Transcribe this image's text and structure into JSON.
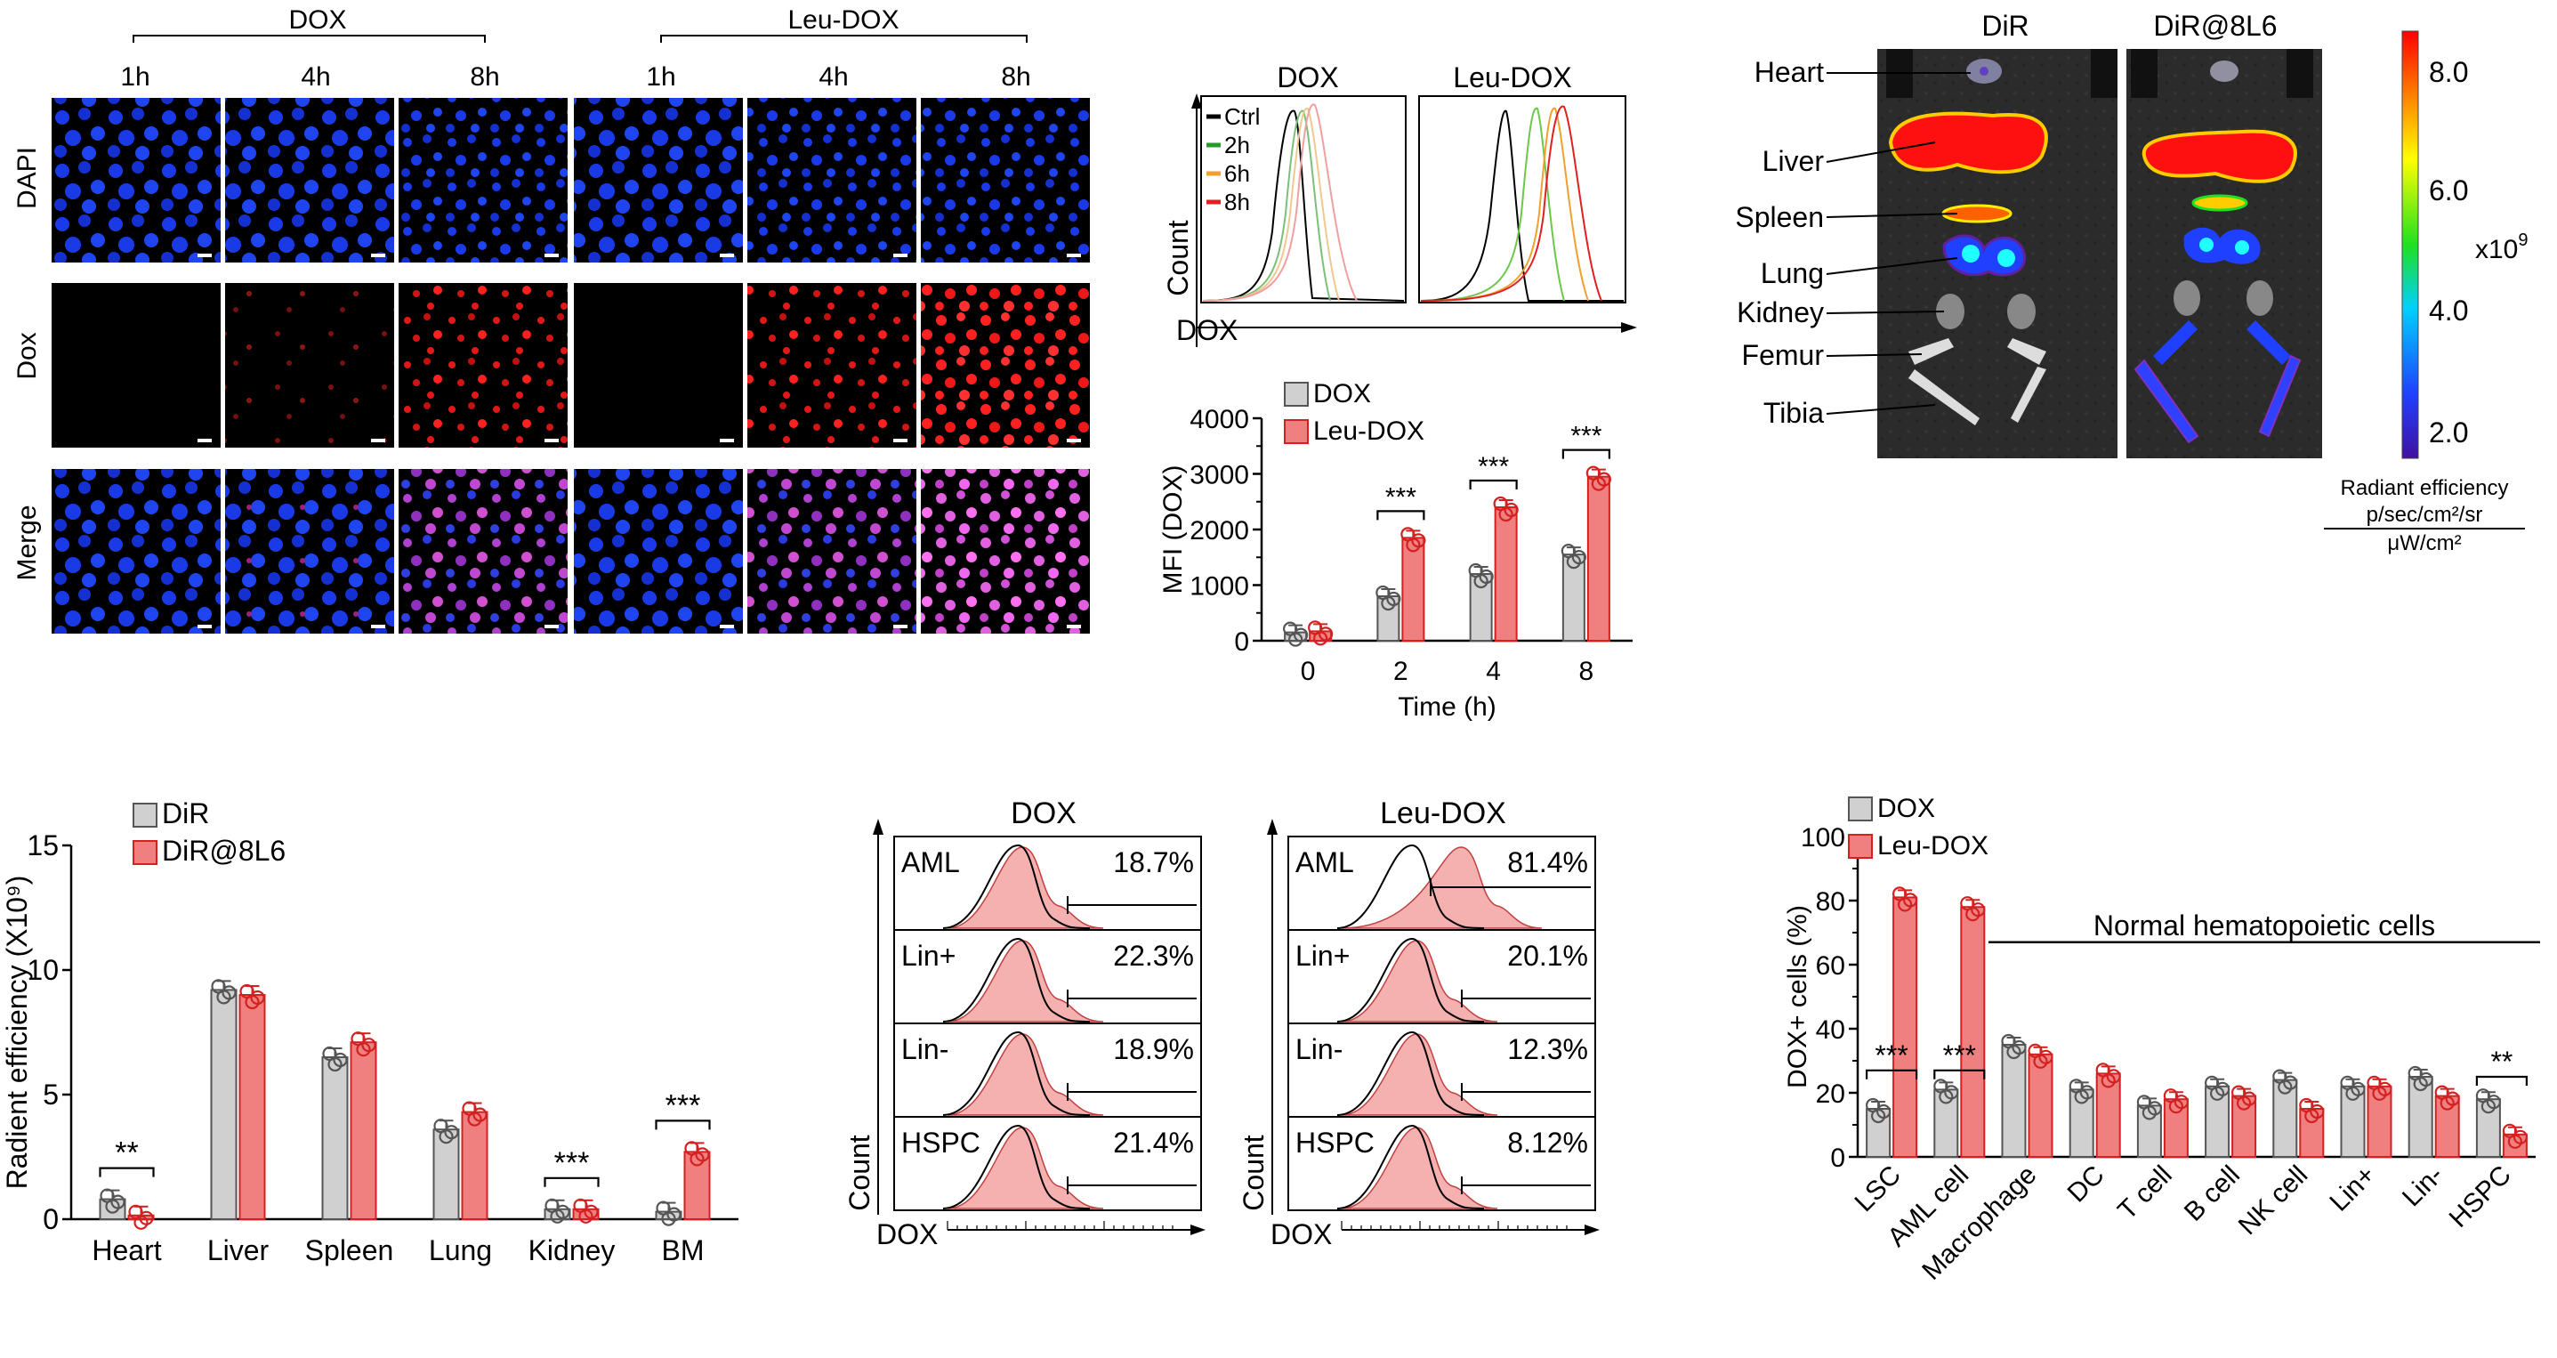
{
  "colors": {
    "dox": "#d0d0d0",
    "leu": "#f08080",
    "leu_stroke": "#d32020",
    "dox_stroke": "#555555",
    "dapi": "#1430e0",
    "dox_red": "#ff2020",
    "merge": "#cc44cc"
  },
  "panel_a": {
    "groups": [
      "DOX",
      "Leu-DOX"
    ],
    "times": [
      "1h",
      "4h",
      "8h",
      "1h",
      "4h",
      "8h"
    ],
    "row_labels": [
      "DAPI",
      "Dox",
      "Merge"
    ]
  },
  "panel_b": {
    "hist_titles": [
      "DOX",
      "Leu-DOX"
    ],
    "legend": [
      "Ctrl",
      "2h",
      "6h",
      "8h"
    ],
    "legend_colors": [
      "#000000",
      "#2a9a2a",
      "#f0a030",
      "#e02020"
    ],
    "ylabel": "Count",
    "xlabel": "DOX"
  },
  "chart_data": [
    {
      "type": "bar",
      "legend": [
        "DOX",
        "Leu-DOX"
      ],
      "categories": [
        "0",
        "2",
        "4",
        "8"
      ],
      "series": [
        {
          "name": "DOX",
          "values": [
            150,
            800,
            1200,
            1550
          ]
        },
        {
          "name": "Leu-DOX",
          "values": [
            170,
            1850,
            2400,
            2950
          ]
        }
      ],
      "xlabel": "Time (h)",
      "ylabel": "MFI (DOX)",
      "ylim": [
        0,
        4000
      ],
      "yticks": [
        "0",
        "1000",
        "2000",
        "3000",
        "4000"
      ],
      "significance": [
        "***",
        "***",
        "***"
      ]
    },
    {
      "type": "bar",
      "legend": [
        "DiR",
        "DiR@8L6"
      ],
      "categories": [
        "Heart",
        "Liver",
        "Spleen",
        "Lung",
        "Kidney",
        "BM"
      ],
      "series": [
        {
          "name": "DiR",
          "values": [
            0.8,
            9.2,
            6.5,
            3.6,
            0.4,
            0.3
          ]
        },
        {
          "name": "DiR@8L6",
          "values": [
            0.15,
            9.0,
            7.1,
            4.3,
            0.4,
            2.7
          ]
        }
      ],
      "ylabel": "Radient efficiency (X10⁹)",
      "ylim": [
        0,
        15
      ],
      "yticks": [
        "0",
        "5",
        "10",
        "15"
      ],
      "significance": [
        "**",
        "***",
        "***"
      ]
    },
    {
      "type": "bar",
      "legend": [
        "DOX",
        "Leu-DOX"
      ],
      "categories": [
        "LSC",
        "AML cell",
        "Macrophage",
        "DC",
        "T cell",
        "B cell",
        "NK cell",
        "Lin+",
        "Lin-",
        "HSPC"
      ],
      "series": [
        {
          "name": "DOX",
          "values": [
            15,
            21,
            35,
            21,
            16,
            22,
            24,
            22,
            25,
            18
          ]
        },
        {
          "name": "Leu-DOX",
          "values": [
            81,
            78,
            32,
            26,
            18,
            19,
            15,
            22,
            19,
            7
          ]
        }
      ],
      "ylabel": "DOX+ cells  (%)",
      "ylim": [
        0,
        100
      ],
      "yticks": [
        "0",
        "20",
        "40",
        "60",
        "80",
        "100"
      ],
      "significance": [
        "***",
        "***",
        "**"
      ],
      "annotation": "Normal hematopoietic cells"
    }
  ],
  "panel_c": {
    "titles": [
      "DiR",
      "DiR@8L6"
    ],
    "organs": [
      "Heart",
      "Liver",
      "Spleen",
      "Lung",
      "Kidney",
      "Femur",
      "Tibia"
    ],
    "colorbar_ticks": [
      "8.0",
      "6.0",
      "4.0",
      "2.0"
    ],
    "colorbar_exp": "x10",
    "colorbar_exp_sup": "9",
    "colorbar_label_1": "Radiant efficiency",
    "colorbar_label_2": "p/sec/cm²/sr",
    "colorbar_label_3": "μW/cm²"
  },
  "panel_e": {
    "titles": [
      "DOX",
      "Leu-DOX"
    ],
    "rows": [
      "AML",
      "Lin+",
      "Lin-",
      "HSPC"
    ],
    "dox_pct": [
      "18.7%",
      "22.3%",
      "18.9%",
      "21.4%"
    ],
    "leu_pct": [
      "81.4%",
      "20.1%",
      "12.3%",
      "8.12%"
    ],
    "ylabel": "Count",
    "xlabel": "DOX"
  }
}
